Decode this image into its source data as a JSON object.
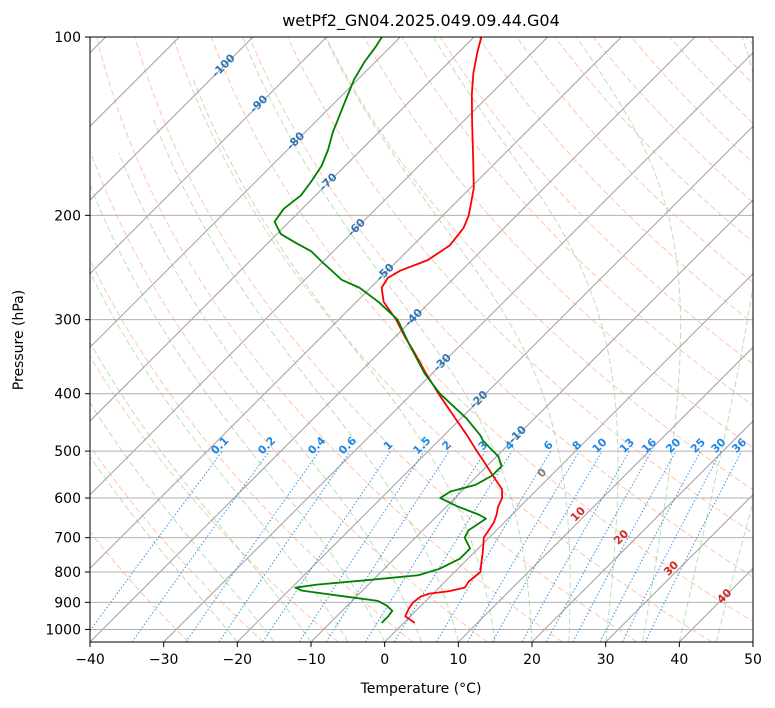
{
  "chart_data": {
    "type": "line",
    "subtype": "skew-t log-p diagram",
    "title": "wetPf2_GN04.2025.049.09.44.G04",
    "xlabel": "Temperature (°C)",
    "ylabel": "Pressure (hPa)",
    "xlim": [
      -40,
      50
    ],
    "ylim": [
      1050,
      100
    ],
    "y_scale": "log",
    "x_ticks": [
      -40,
      -30,
      -20,
      -10,
      0,
      10,
      20,
      30,
      40,
      50
    ],
    "x_tick_labels": [
      "−40",
      "−30",
      "−20",
      "−10",
      "0",
      "10",
      "20",
      "30",
      "40",
      "50"
    ],
    "y_ticks": [
      100,
      200,
      300,
      400,
      500,
      600,
      700,
      800,
      900,
      1000
    ],
    "y_tick_labels": [
      "100",
      "200",
      "300",
      "400",
      "500",
      "600",
      "700",
      "800",
      "900",
      "1000"
    ],
    "grid": true,
    "series": [
      {
        "key": "temperature",
        "color": "#ff0000",
        "points": [
          [
            975,
            1.5
          ],
          [
            950,
            -0.7
          ],
          [
            920,
            -1.3
          ],
          [
            900,
            -1.5
          ],
          [
            880,
            -1.3
          ],
          [
            870,
            -0.5
          ],
          [
            862,
            1.8
          ],
          [
            850,
            3.5
          ],
          [
            830,
            3.2
          ],
          [
            800,
            3.5
          ],
          [
            770,
            2.3
          ],
          [
            740,
            1.1
          ],
          [
            700,
            -0.7
          ],
          [
            660,
            -1.4
          ],
          [
            640,
            -2.1
          ],
          [
            620,
            -3.0
          ],
          [
            600,
            -3.6
          ],
          [
            580,
            -4.8
          ],
          [
            550,
            -7.9
          ],
          [
            520,
            -11.1
          ],
          [
            500,
            -13.4
          ],
          [
            470,
            -16.9
          ],
          [
            440,
            -20.8
          ],
          [
            400,
            -26.4
          ],
          [
            370,
            -30.8
          ],
          [
            340,
            -35.4
          ],
          [
            320,
            -38.8
          ],
          [
            300,
            -42.2
          ],
          [
            280,
            -46.3
          ],
          [
            265,
            -48.5
          ],
          [
            255,
            -49.0
          ],
          [
            248,
            -48.3
          ],
          [
            238,
            -46.0
          ],
          [
            225,
            -45.0
          ],
          [
            210,
            -45.5
          ],
          [
            200,
            -46.5
          ],
          [
            180,
            -49.5
          ],
          [
            160,
            -53.7
          ],
          [
            140,
            -58.5
          ],
          [
            125,
            -62.5
          ],
          [
            115,
            -65.2
          ],
          [
            106,
            -67.5
          ],
          [
            100,
            -69.0
          ]
        ]
      },
      {
        "key": "dewpoint",
        "color": "#008000",
        "points": [
          [
            975,
            -3.0
          ],
          [
            950,
            -3.0
          ],
          [
            930,
            -3.2
          ],
          [
            910,
            -4.8
          ],
          [
            895,
            -6.5
          ],
          [
            880,
            -11.5
          ],
          [
            860,
            -18.2
          ],
          [
            850,
            -19.5
          ],
          [
            840,
            -17.0
          ],
          [
            825,
            -10.5
          ],
          [
            810,
            -4.5
          ],
          [
            790,
            -2.5
          ],
          [
            760,
            -1.1
          ],
          [
            730,
            -1.1
          ],
          [
            700,
            -3.3
          ],
          [
            680,
            -3.8
          ],
          [
            670,
            -3.5
          ],
          [
            650,
            -3.0
          ],
          [
            640,
            -4.5
          ],
          [
            620,
            -8.5
          ],
          [
            600,
            -12.0
          ],
          [
            585,
            -11.5
          ],
          [
            570,
            -9.0
          ],
          [
            550,
            -8.0
          ],
          [
            530,
            -8.0
          ],
          [
            510,
            -9.8
          ],
          [
            500,
            -11.2
          ],
          [
            480,
            -14.0
          ],
          [
            470,
            -15.1
          ],
          [
            440,
            -19.3
          ],
          [
            400,
            -26.2
          ],
          [
            370,
            -31.0
          ],
          [
            330,
            -37.1
          ],
          [
            300,
            -42.0
          ],
          [
            280,
            -47.0
          ],
          [
            265,
            -51.5
          ],
          [
            257,
            -55.0
          ],
          [
            250,
            -57.0
          ],
          [
            240,
            -60.0
          ],
          [
            230,
            -63.0
          ],
          [
            222,
            -66.5
          ],
          [
            215,
            -69.5
          ],
          [
            205,
            -72.0
          ],
          [
            195,
            -72.5
          ],
          [
            185,
            -72.0
          ],
          [
            175,
            -72.5
          ],
          [
            165,
            -73.2
          ],
          [
            155,
            -74.5
          ],
          [
            145,
            -76.2
          ],
          [
            130,
            -78.5
          ],
          [
            118,
            -80.5
          ],
          [
            110,
            -81.5
          ],
          [
            104,
            -82.0
          ],
          [
            100,
            -82.5
          ]
        ]
      }
    ],
    "mixing_ratio_labels": [
      "0.1",
      "0.2",
      "0.4",
      "0.6",
      "1",
      "1.5",
      "2",
      "3",
      "4",
      "6",
      "8",
      "10",
      "13",
      "16",
      "20",
      "25",
      "30",
      "36"
    ],
    "isotherm_labels": [
      "-100",
      "-90",
      "-80",
      "-70",
      "-60",
      "-50",
      "-40",
      "-30",
      "-20",
      "-10"
    ],
    "moist_adiabat_labels": [
      "0",
      "10",
      "20",
      "30",
      "40"
    ]
  }
}
